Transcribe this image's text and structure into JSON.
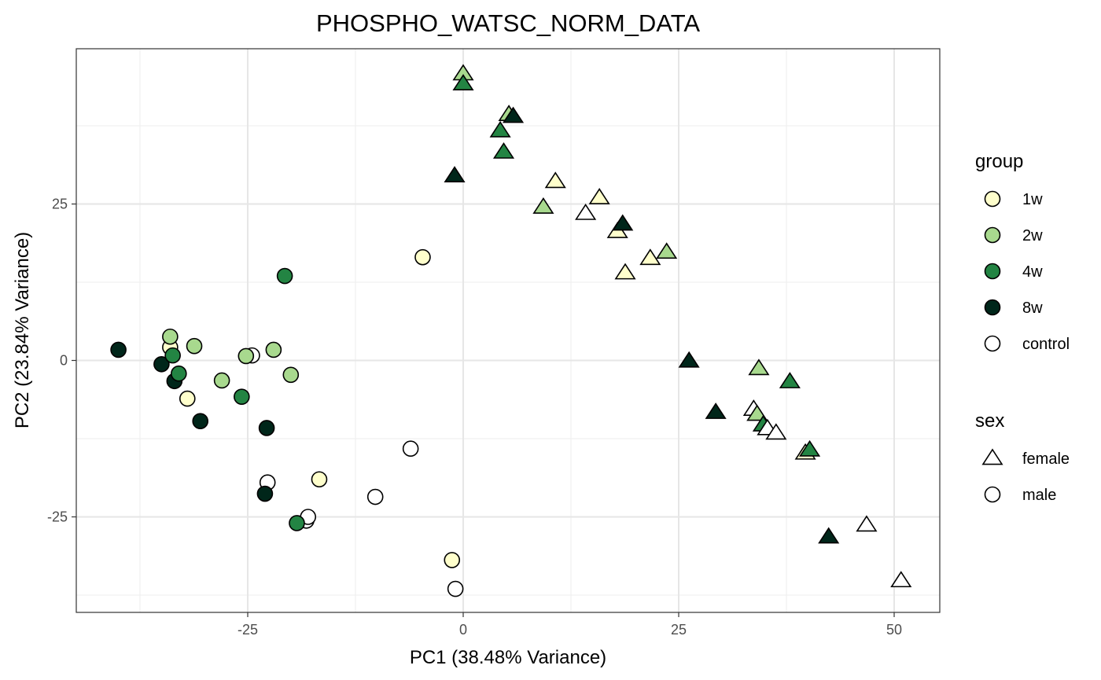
{
  "chart_data": {
    "type": "scatter",
    "title": "PHOSPHO_WATSC_NORM_DATA",
    "xlabel": "PC1 (38.48% Variance)",
    "ylabel": "PC2 (23.84% Variance)",
    "xlim": [
      -45,
      55
    ],
    "ylim": [
      -40,
      50
    ],
    "xticks": [
      -25,
      0,
      25,
      50
    ],
    "xtick_labels": [
      "-25",
      "0",
      "25",
      "50"
    ],
    "yticks": [
      -25,
      0,
      25
    ],
    "ytick_labels": [
      "-25",
      "0",
      "25"
    ],
    "grid": true,
    "legend_position": "right",
    "legend_group": {
      "title": "group",
      "entries": [
        {
          "key": "1w",
          "label": "1w",
          "color": "#FFFFCC"
        },
        {
          "key": "2w",
          "label": "2w",
          "color": "#A8D98E"
        },
        {
          "key": "4w",
          "label": "4w",
          "color": "#238443"
        },
        {
          "key": "8w",
          "label": "8w",
          "color": "#00261A"
        },
        {
          "key": "control",
          "label": "control",
          "color": "#FFFFFF"
        }
      ]
    },
    "legend_sex": {
      "title": "sex",
      "entries": [
        {
          "key": "female",
          "label": "female",
          "shape": "triangle"
        },
        {
          "key": "male",
          "label": "male",
          "shape": "circle"
        }
      ]
    },
    "points": [
      {
        "x": -40.0,
        "y": 1.7,
        "group": "8w",
        "sex": "male"
      },
      {
        "x": -35.0,
        "y": -0.6,
        "group": "8w",
        "sex": "male"
      },
      {
        "x": -34.0,
        "y": 2.1,
        "group": "1w",
        "sex": "male"
      },
      {
        "x": -34.0,
        "y": 3.8,
        "group": "2w",
        "sex": "male"
      },
      {
        "x": -33.7,
        "y": 0.8,
        "group": "4w",
        "sex": "male"
      },
      {
        "x": -33.5,
        "y": -3.3,
        "group": "8w",
        "sex": "male"
      },
      {
        "x": -33.0,
        "y": -2.1,
        "group": "4w",
        "sex": "male"
      },
      {
        "x": -32.0,
        "y": -6.1,
        "group": "1w",
        "sex": "male"
      },
      {
        "x": -31.2,
        "y": 2.3,
        "group": "2w",
        "sex": "male"
      },
      {
        "x": -30.5,
        "y": -9.7,
        "group": "8w",
        "sex": "male"
      },
      {
        "x": -28.0,
        "y": -3.2,
        "group": "2w",
        "sex": "male"
      },
      {
        "x": -25.7,
        "y": -5.8,
        "group": "4w",
        "sex": "male"
      },
      {
        "x": -24.5,
        "y": 0.8,
        "group": "control",
        "sex": "male"
      },
      {
        "x": -25.2,
        "y": 0.7,
        "group": "2w",
        "sex": "male"
      },
      {
        "x": -22.8,
        "y": -10.8,
        "group": "8w",
        "sex": "male"
      },
      {
        "x": -22.7,
        "y": -19.5,
        "group": "control",
        "sex": "male"
      },
      {
        "x": -23.0,
        "y": -21.3,
        "group": "8w",
        "sex": "male"
      },
      {
        "x": -22.0,
        "y": 1.7,
        "group": "2w",
        "sex": "male"
      },
      {
        "x": -20.7,
        "y": 13.5,
        "group": "4w",
        "sex": "male"
      },
      {
        "x": -20.0,
        "y": -2.3,
        "group": "2w",
        "sex": "male"
      },
      {
        "x": -18.2,
        "y": -25.6,
        "group": "control",
        "sex": "male"
      },
      {
        "x": -18.0,
        "y": -25.0,
        "group": "control",
        "sex": "male"
      },
      {
        "x": -19.3,
        "y": -26.0,
        "group": "4w",
        "sex": "male"
      },
      {
        "x": -16.7,
        "y": -19.0,
        "group": "1w",
        "sex": "male"
      },
      {
        "x": -10.2,
        "y": -21.8,
        "group": "control",
        "sex": "male"
      },
      {
        "x": -6.1,
        "y": -14.1,
        "group": "control",
        "sex": "male"
      },
      {
        "x": -4.7,
        "y": 16.5,
        "group": "1w",
        "sex": "male"
      },
      {
        "x": -1.3,
        "y": -31.9,
        "group": "1w",
        "sex": "male"
      },
      {
        "x": -0.9,
        "y": -36.5,
        "group": "control",
        "sex": "male"
      },
      {
        "x": -1.0,
        "y": 29.5,
        "group": "8w",
        "sex": "female"
      },
      {
        "x": 0.0,
        "y": 45.8,
        "group": "2w",
        "sex": "female"
      },
      {
        "x": 0.0,
        "y": 44.2,
        "group": "4w",
        "sex": "female"
      },
      {
        "x": 4.3,
        "y": 36.7,
        "group": "4w",
        "sex": "female"
      },
      {
        "x": 4.7,
        "y": 33.3,
        "group": "4w",
        "sex": "female"
      },
      {
        "x": 5.3,
        "y": 39.3,
        "group": "2w",
        "sex": "female"
      },
      {
        "x": 5.8,
        "y": 39.0,
        "group": "8w",
        "sex": "female"
      },
      {
        "x": 9.3,
        "y": 24.5,
        "group": "2w",
        "sex": "female"
      },
      {
        "x": 10.7,
        "y": 28.6,
        "group": "1w",
        "sex": "female"
      },
      {
        "x": 14.2,
        "y": 23.5,
        "group": "control",
        "sex": "female"
      },
      {
        "x": 15.8,
        "y": 26.0,
        "group": "1w",
        "sex": "female"
      },
      {
        "x": 17.9,
        "y": 20.6,
        "group": "1w",
        "sex": "female"
      },
      {
        "x": 18.5,
        "y": 21.8,
        "group": "8w",
        "sex": "female"
      },
      {
        "x": 18.8,
        "y": 14.0,
        "group": "1w",
        "sex": "female"
      },
      {
        "x": 21.7,
        "y": 16.3,
        "group": "1w",
        "sex": "female"
      },
      {
        "x": 23.6,
        "y": 17.3,
        "group": "2w",
        "sex": "female"
      },
      {
        "x": 26.2,
        "y": -0.1,
        "group": "8w",
        "sex": "female"
      },
      {
        "x": 29.3,
        "y": -8.3,
        "group": "8w",
        "sex": "female"
      },
      {
        "x": 33.7,
        "y": -7.8,
        "group": "control",
        "sex": "female"
      },
      {
        "x": 34.1,
        "y": -8.6,
        "group": "2w",
        "sex": "female"
      },
      {
        "x": 34.3,
        "y": -1.3,
        "group": "2w",
        "sex": "female"
      },
      {
        "x": 34.8,
        "y": -10.3,
        "group": "4w",
        "sex": "female"
      },
      {
        "x": 35.3,
        "y": -10.9,
        "group": "control",
        "sex": "female"
      },
      {
        "x": 36.3,
        "y": -11.6,
        "group": "control",
        "sex": "female"
      },
      {
        "x": 37.9,
        "y": -3.4,
        "group": "4w",
        "sex": "female"
      },
      {
        "x": 39.7,
        "y": -14.8,
        "group": "1w",
        "sex": "female"
      },
      {
        "x": 40.2,
        "y": -14.3,
        "group": "4w",
        "sex": "female"
      },
      {
        "x": 42.4,
        "y": -28.2,
        "group": "8w",
        "sex": "female"
      },
      {
        "x": 46.8,
        "y": -26.3,
        "group": "control",
        "sex": "female"
      },
      {
        "x": 50.8,
        "y": -35.2,
        "group": "control",
        "sex": "female"
      }
    ]
  }
}
